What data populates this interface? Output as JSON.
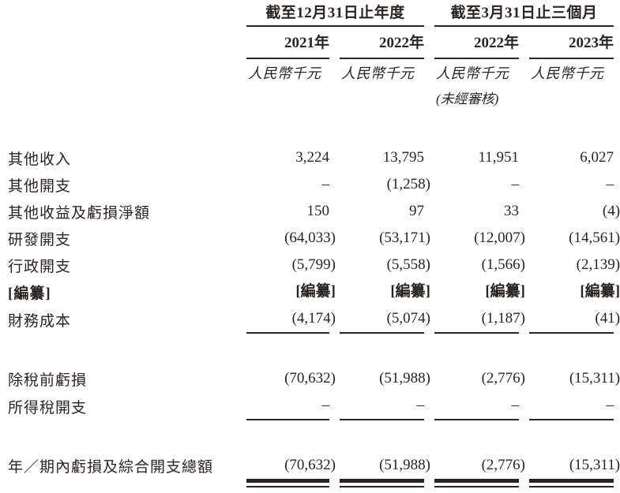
{
  "colors": {
    "ink": "#2a2422",
    "background": "#ffffff"
  },
  "header": {
    "groups": [
      {
        "label": "截至12月31日止年度"
      },
      {
        "label": "截至3月31日止三個月"
      }
    ],
    "years": [
      "2021年",
      "2022年",
      "2022年",
      "2023年"
    ],
    "unit": "人民幣千元",
    "unaudited": "(未經審核)"
  },
  "rows": [
    {
      "label": "其他收入",
      "values": [
        "3,224",
        "13,795",
        "11,951",
        "6,027"
      ],
      "gap_before": 38,
      "rule_below": "none",
      "redacted": false
    },
    {
      "label": "其他開支",
      "values": [
        "–",
        "(1,258)",
        "–",
        "–"
      ],
      "gap_before": 0,
      "rule_below": "none",
      "redacted": false
    },
    {
      "label": "其他收益及虧損淨額",
      "values": [
        "150",
        "97",
        "33",
        "(4)"
      ],
      "gap_before": 0,
      "rule_below": "none",
      "redacted": false
    },
    {
      "label": "研發開支",
      "values": [
        "(64,033)",
        "(53,171)",
        "(12,007)",
        "(14,561)"
      ],
      "gap_before": 0,
      "rule_below": "none",
      "redacted": false
    },
    {
      "label": "行政開支",
      "values": [
        "(5,799)",
        "(5,558)",
        "(1,566)",
        "(2,139)"
      ],
      "gap_before": 0,
      "rule_below": "none",
      "redacted": false
    },
    {
      "label": "[編纂]",
      "values": [
        "[編纂]",
        "[編纂]",
        "[編纂]",
        "[編纂]"
      ],
      "gap_before": 0,
      "rule_below": "none",
      "redacted": true
    },
    {
      "label": "財務成本",
      "values": [
        "(4,174)",
        "(5,074)",
        "(1,187)",
        "(41)"
      ],
      "gap_before": 0,
      "rule_below": "single",
      "redacted": false
    },
    {
      "label": "除稅前虧損",
      "values": [
        "(70,632)",
        "(51,988)",
        "(2,776)",
        "(15,311)"
      ],
      "gap_before": 40,
      "rule_below": "none",
      "redacted": false
    },
    {
      "label": "所得稅開支",
      "values": [
        "–",
        "–",
        "–",
        "–"
      ],
      "gap_before": 0,
      "rule_below": "single",
      "redacted": false
    },
    {
      "label": "年／期內虧損及綜合開支總額",
      "values": [
        "(70,632)",
        "(51,988)",
        "(2,776)",
        "(15,311)"
      ],
      "gap_before": 40,
      "rule_below": "double",
      "redacted": false
    }
  ]
}
